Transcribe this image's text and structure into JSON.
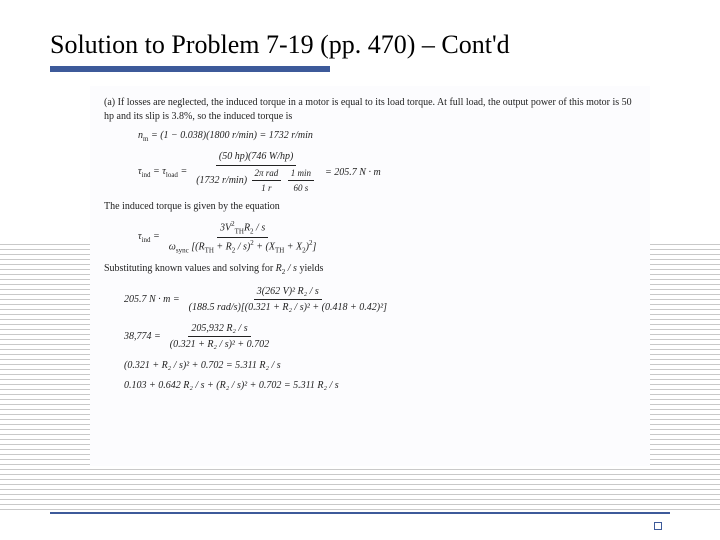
{
  "slide": {
    "title": "Solution to Problem 7-19 (pp. 470) – Cont'd",
    "para_a": "(a)   If losses are neglected, the induced torque in a motor is equal to its load torque.  At full load, the output power of this motor is 50 hp and its slip is 3.8%, so the induced torque is",
    "eq1": {
      "lhs": "n",
      "lhs_sub": "m",
      "body": " = (1 − 0.038)(1800 r/min) = 1732 r/min"
    },
    "eq2": {
      "lhs": "τ",
      "lhs_sub": "ind",
      "eq": " = τ",
      "eq_sub": "load",
      "eq2": " = ",
      "num": "(50 hp)(746 W/hp)",
      "den_a": "(1732 r/min)",
      "den_b_num": "2π rad",
      "den_b_den": "1 r",
      "den_c_num": "1 min",
      "den_c_den": "60 s",
      "result": " = 205.7 N · m"
    },
    "para_b": "The induced torque is given by the equation",
    "eq3": {
      "lhs": "τ",
      "lhs_sub": "ind",
      "eq": " = ",
      "num_a": "3V",
      "num_a_sup": "2",
      "num_a_sub": "TH",
      "num_b": "R",
      "num_b_sub": "2",
      "num_c": " / s",
      "den_a": "ω",
      "den_a_sub": "sync",
      "den_b": "(R",
      "den_b_sub": "TH",
      "den_c": " + R",
      "den_c_sub": "2",
      "den_d": " / s)",
      "den_d_sup": "2",
      "den_e": " + (X",
      "den_e_sub": "TH",
      "den_f": " + X",
      "den_f_sub": "2",
      "den_g": ")",
      "den_g_sup": "2"
    },
    "para_c_a": "Substituting known values and solving for ",
    "para_c_b": "R",
    "para_c_sub": "2",
    "para_c_c": " / s",
    "para_c_d": "  yields",
    "eq4": {
      "lhs": "205.7 N · m = ",
      "num": "3(262 V)² R₂ / s",
      "den": "(188.5 rad/s)[(0.321 + R₂ / s)² + (0.418 + 0.42)²]"
    },
    "eq5": {
      "lhs": "38,774 = ",
      "num": "205,932  R₂ / s",
      "den": "(0.321 + R₂ / s)² + 0.702"
    },
    "eq6": "(0.321 + R₂ / s)² + 0.702  =  5.311  R₂ / s",
    "eq7": "0.103 + 0.642 R₂ / s + (R₂ / s)² + 0.702  =  5.311  R₂ / s"
  },
  "colors": {
    "accent": "#3d5a9a",
    "text": "#222222",
    "bg": "#ffffff"
  }
}
